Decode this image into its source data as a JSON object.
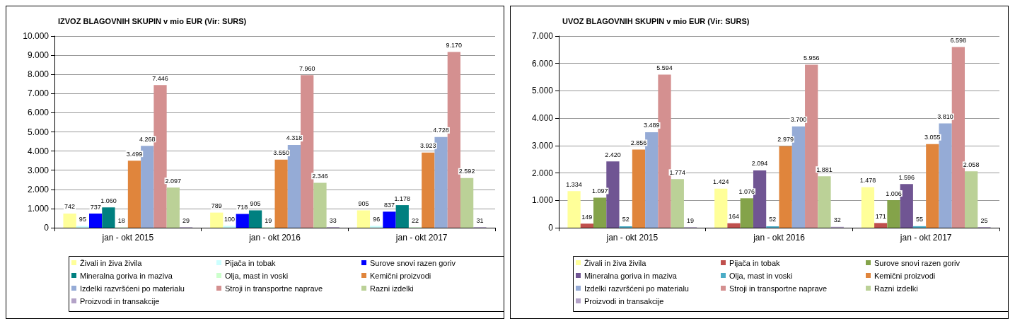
{
  "chart_data": [
    {
      "type": "bar",
      "title": "IZVOZ BLAGOVNIH SKUPIN v mio EUR (Vir: SURS)",
      "categories": [
        "jan - okt 2015",
        "jan - okt 2016",
        "jan - okt 2017"
      ],
      "ylim": [
        0,
        10000
      ],
      "yticks": [
        0,
        {
          "value": 1000,
          "label": "1.000"
        },
        {
          "value": 2000,
          "label": "2.000"
        },
        {
          "value": 3000,
          "label": "3.000"
        },
        {
          "value": 4000,
          "label": "4.000"
        },
        {
          "value": 5000,
          "label": "5.000"
        },
        {
          "value": 6000,
          "label": "6.000"
        },
        {
          "value": 7000,
          "label": "7.000"
        },
        {
          "value": 8000,
          "label": "8.000"
        },
        {
          "value": 9000,
          "label": "9.000"
        },
        {
          "value": 10000,
          "label": "10.000"
        }
      ],
      "grid": "y",
      "legend": "bottom",
      "series": [
        {
          "name": "Živali in živa živila",
          "color": "#ffff99",
          "values": [
            742,
            789,
            905
          ],
          "value_labels": [
            "742",
            "789",
            "905"
          ]
        },
        {
          "name": "Pijača in tobak",
          "color": "#ccffff",
          "values": [
            95,
            100,
            96
          ],
          "value_labels": [
            "95",
            "100",
            "96"
          ]
        },
        {
          "name": "Surove snovi razen goriv",
          "color": "#0000ff",
          "values": [
            737,
            718,
            837
          ],
          "value_labels": [
            "737",
            "718",
            "837"
          ]
        },
        {
          "name": "Mineralna goriva in maziva",
          "color": "#008080",
          "values": [
            1060,
            905,
            1178
          ],
          "value_labels": [
            "1.060",
            "905",
            "1.178"
          ]
        },
        {
          "name": "Olja, mast in voski",
          "color": "#ccffcc",
          "values": [
            18,
            19,
            22
          ],
          "value_labels": [
            "18",
            "19",
            "22"
          ]
        },
        {
          "name": "Kemični proizvodi",
          "color": "#e0853c",
          "values": [
            3499,
            3550,
            3923
          ],
          "value_labels": [
            "3.499",
            "3.550",
            "3.923"
          ]
        },
        {
          "name": "Izdelki razvršćeni po materialu",
          "color": "#95abd6",
          "values": [
            4268,
            4318,
            4728
          ],
          "value_labels": [
            "4.268",
            "4.318",
            "4.728"
          ]
        },
        {
          "name": "Stroji in transportne naprave",
          "color": "#d49090",
          "values": [
            7446,
            7960,
            9170
          ],
          "value_labels": [
            "7.446",
            "7.960",
            "9.170"
          ]
        },
        {
          "name": "Razni izdelki",
          "color": "#bbd197",
          "values": [
            2097,
            2346,
            2592
          ],
          "value_labels": [
            "2.097",
            "2.346",
            "2.592"
          ]
        },
        {
          "name": "Proizvodi in transakcije",
          "color": "#b3a2c7",
          "values": [
            29,
            33,
            31
          ],
          "value_labels": [
            "29",
            "33",
            "31"
          ]
        }
      ]
    },
    {
      "type": "bar",
      "title": "UVOZ BLAGOVNIH SKUPIN v mio EUR (Vir: SURS)",
      "categories": [
        "jan - okt 2015",
        "jan - okt 2016",
        "jan - okt 2017"
      ],
      "ylim": [
        0,
        7000
      ],
      "yticks": [
        0,
        {
          "value": 1000,
          "label": "1.000"
        },
        {
          "value": 2000,
          "label": "2.000"
        },
        {
          "value": 3000,
          "label": "3.000"
        },
        {
          "value": 4000,
          "label": "4.000"
        },
        {
          "value": 5000,
          "label": "5.000"
        },
        {
          "value": 6000,
          "label": "6.000"
        },
        {
          "value": 7000,
          "label": "7.000"
        }
      ],
      "grid": "y",
      "legend": "bottom",
      "series": [
        {
          "name": "Živali in živa živila",
          "color": "#ffff99",
          "values": [
            1334,
            1424,
            1478
          ],
          "value_labels": [
            "1.334",
            "1.424",
            "1.478"
          ]
        },
        {
          "name": "Pijača in tobak",
          "color": "#c0504d",
          "values": [
            149,
            164,
            171
          ],
          "value_labels": [
            "149",
            "164",
            "171"
          ]
        },
        {
          "name": "Surove snovi razen goriv",
          "color": "#84a34a",
          "values": [
            1097,
            1076,
            1006
          ],
          "value_labels": [
            "1.097",
            "1.076",
            "1.006"
          ]
        },
        {
          "name": "Mineralna goriva in maziva",
          "color": "#705593",
          "values": [
            2420,
            2094,
            1596
          ],
          "value_labels": [
            "2.420",
            "2.094",
            "1.596"
          ]
        },
        {
          "name": "Olja, mast in voski",
          "color": "#4bacc6",
          "values": [
            52,
            52,
            55
          ],
          "value_labels": [
            "52",
            "52",
            "55"
          ]
        },
        {
          "name": "Kemični proizvodi",
          "color": "#e0853c",
          "values": [
            2856,
            2979,
            3055
          ],
          "value_labels": [
            "2.856",
            "2.979",
            "3.055"
          ]
        },
        {
          "name": "Izdelki razvršćeni po materialu",
          "color": "#95abd6",
          "values": [
            3489,
            3700,
            3810
          ],
          "value_labels": [
            "3.489",
            "3.700",
            "3.810"
          ]
        },
        {
          "name": "Stroji in transportne naprave",
          "color": "#d49090",
          "values": [
            5594,
            5956,
            6598
          ],
          "value_labels": [
            "5.594",
            "5.956",
            "6.598"
          ]
        },
        {
          "name": "Razni izdelki",
          "color": "#bbd197",
          "values": [
            1774,
            1881,
            2058
          ],
          "value_labels": [
            "1.774",
            "1.881",
            "2.058"
          ]
        },
        {
          "name": "Proizvodi in transakcije",
          "color": "#b3a2c7",
          "values": [
            19,
            32,
            25
          ],
          "value_labels": [
            "19",
            "32",
            "25"
          ]
        }
      ]
    }
  ]
}
